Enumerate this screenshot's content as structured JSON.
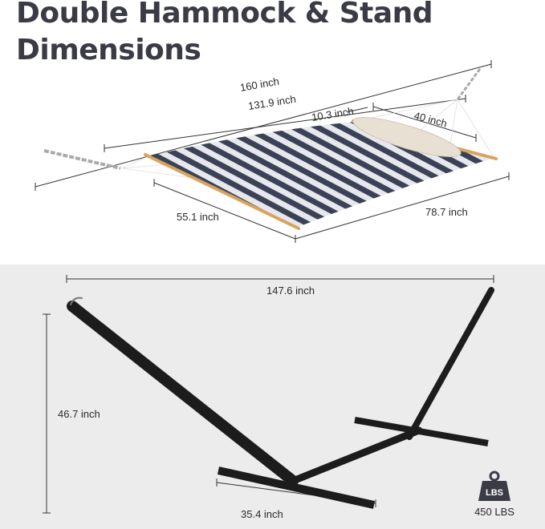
{
  "title": "Double Hammock & Stand Dimensions",
  "hammock": {
    "overall_length": "160 inch",
    "bed_length": "131.9 inch",
    "pillow_offset": "10.3 inch",
    "pillow_length": "40 inch",
    "bed_width": "55.1 inch",
    "fabric_length": "78.7 inch",
    "stripe_colors": [
      "#3b4256",
      "#e6e8ee"
    ],
    "spreader_bar_color": "#d9a35f"
  },
  "stand": {
    "length": "147.6 inch",
    "height": "46.7 inch",
    "base_width": "35.4 inch",
    "frame_color": "#1c1c1c"
  },
  "capacity": {
    "icon": "weight-icon",
    "icon_label": "LBS",
    "value": "450 LBS"
  }
}
